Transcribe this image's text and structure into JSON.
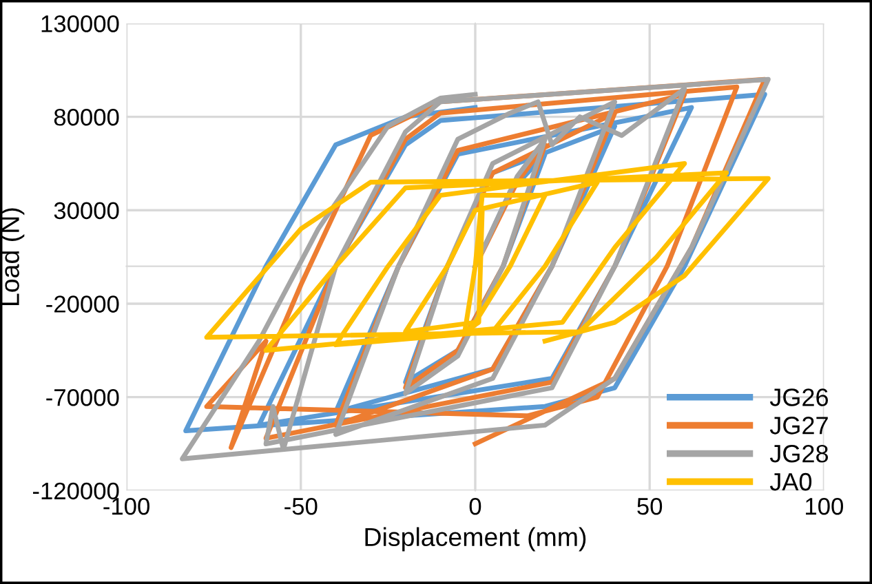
{
  "chart_data": {
    "type": "line",
    "xlabel": "Displacement (mm)",
    "ylabel": "Load (N)",
    "xlim": [
      -100,
      100
    ],
    "xticks": [
      -100,
      -50,
      0,
      50,
      100
    ],
    "ylim": [
      -120000,
      130000
    ],
    "yticks": [
      -120000,
      -70000,
      -20000,
      30000,
      80000,
      130000
    ],
    "grid": true,
    "legend": "bottom right",
    "marker": "none",
    "line_style": "solid",
    "series": [
      {
        "name": "JG26",
        "color": "#5b9bd5",
        "x": [
          0,
          10,
          20,
          8,
          -5,
          -20,
          -8,
          5,
          40,
          22,
          5,
          -40,
          -22,
          -5,
          62,
          40,
          22,
          -62,
          -40,
          -20,
          -10,
          83,
          60,
          40,
          20,
          -83,
          -60,
          -40,
          -20,
          0
        ],
        "values": [
          0,
          40000,
          60000,
          0,
          -45000,
          -62000,
          0,
          50000,
          75000,
          0,
          -55000,
          -78000,
          0,
          60000,
          85000,
          0,
          -60000,
          -85000,
          0,
          65000,
          78000,
          92000,
          0,
          -65000,
          -75000,
          -88000,
          0,
          65000,
          80000,
          85000
        ]
      },
      {
        "name": "JG27",
        "color": "#ed7d31",
        "x": [
          0,
          12,
          20,
          8,
          -5,
          -20,
          -8,
          5,
          40,
          22,
          5,
          -40,
          -22,
          -5,
          60,
          40,
          22,
          -60,
          -40,
          -20,
          -10,
          75,
          55,
          35,
          15,
          -77,
          -60,
          -70,
          -50,
          -30,
          -10,
          83,
          62,
          40,
          0
        ],
        "values": [
          0,
          45000,
          65000,
          0,
          -45000,
          -65000,
          0,
          50000,
          82000,
          0,
          -55000,
          -85000,
          0,
          62000,
          92000,
          0,
          -62000,
          -92000,
          0,
          68000,
          82000,
          96000,
          0,
          -70000,
          -80000,
          -75000,
          -40000,
          -97000,
          -10000,
          70000,
          88000,
          100000,
          10000,
          -60000,
          -95000
        ]
      },
      {
        "name": "JG28",
        "color": "#a5a5a5",
        "x": [
          0,
          12,
          20,
          8,
          -5,
          -20,
          -8,
          5,
          40,
          22,
          5,
          -40,
          -22,
          -5,
          10,
          18,
          22,
          30,
          42,
          60,
          40,
          22,
          -60,
          -58,
          -55,
          -40,
          -20,
          -10,
          84,
          62,
          40,
          20,
          -84,
          -62,
          -45,
          -25,
          -10,
          0
        ],
        "values": [
          0,
          48000,
          68000,
          0,
          -48000,
          -68000,
          0,
          55000,
          88000,
          0,
          -60000,
          -90000,
          0,
          68000,
          82000,
          88000,
          65000,
          80000,
          70000,
          95000,
          0,
          -65000,
          -95000,
          -75000,
          -98000,
          0,
          72000,
          88000,
          100000,
          10000,
          -60000,
          -85000,
          -103000,
          -40000,
          20000,
          75000,
          90000,
          92000
        ]
      },
      {
        "name": "JA0",
        "color": "#ffc000",
        "x": [
          0,
          2,
          1,
          -3,
          0,
          2,
          20,
          10,
          0,
          -20,
          -8,
          0,
          35,
          20,
          5,
          -40,
          -25,
          -10,
          60,
          40,
          25,
          -60,
          -40,
          -20,
          72,
          52,
          30,
          -77,
          -50,
          -30,
          84,
          60,
          40,
          20
        ],
        "values": [
          0,
          30000,
          -30000,
          -35000,
          0,
          38000,
          38000,
          0,
          -30000,
          -35000,
          0,
          30000,
          45000,
          0,
          -35000,
          -42000,
          0,
          38000,
          55000,
          10000,
          -30000,
          -45000,
          0,
          42000,
          50000,
          5000,
          -35000,
          -38000,
          20000,
          45000,
          47000,
          -5000,
          -30000,
          -40000
        ]
      }
    ]
  }
}
